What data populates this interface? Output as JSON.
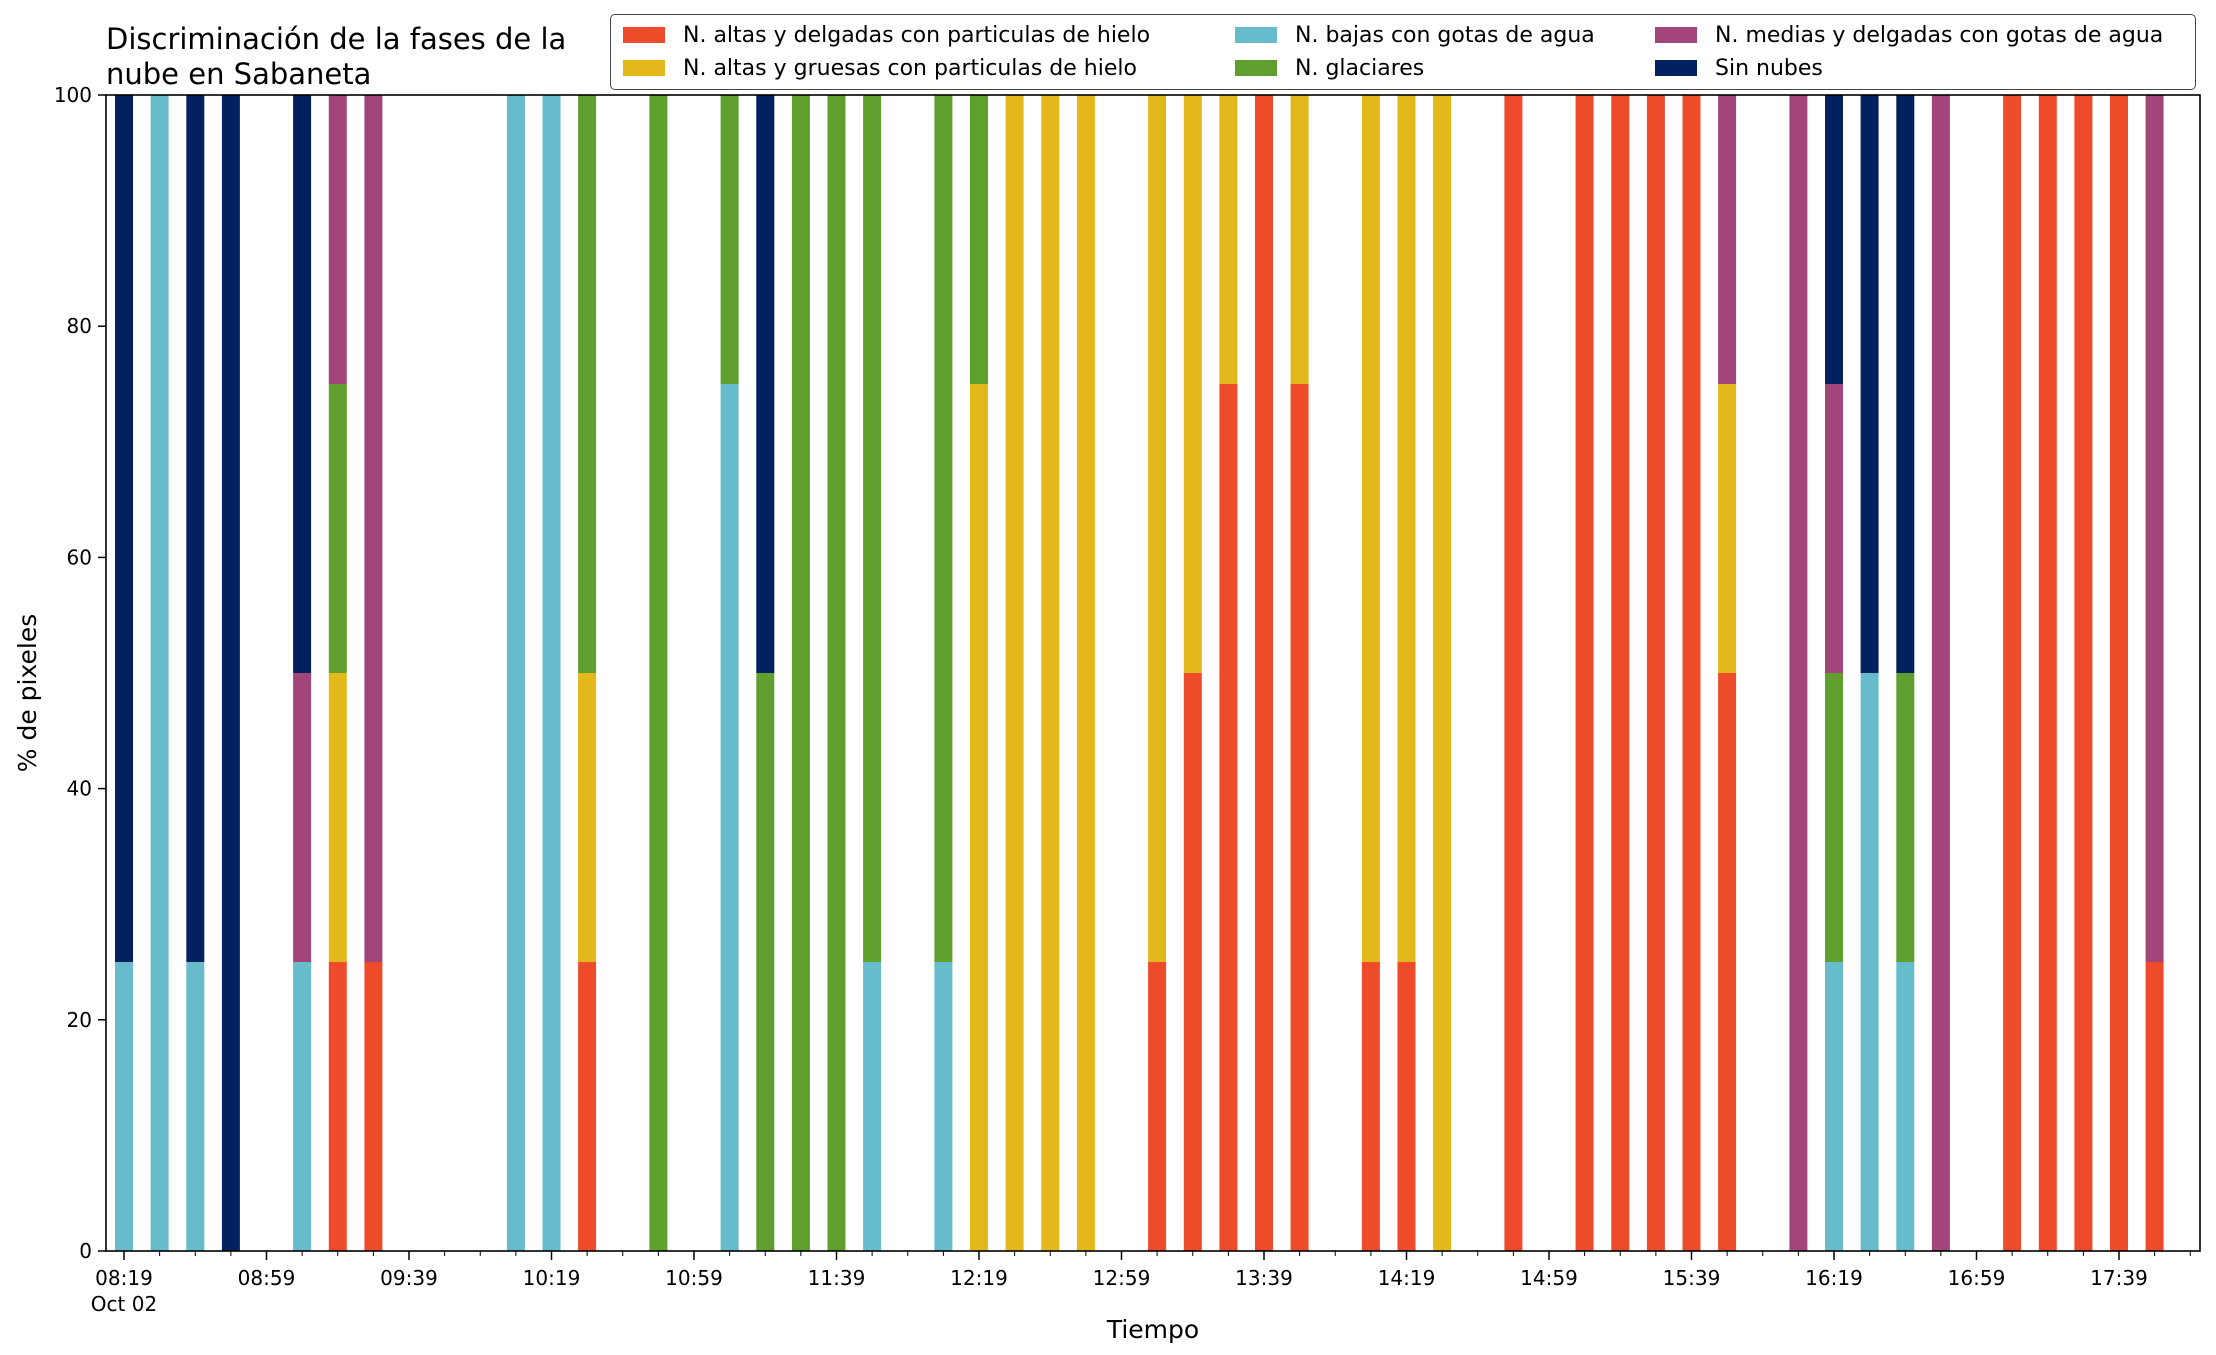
{
  "chart_data": {
    "type": "bar",
    "stacked": true,
    "title_lines": [
      "Discriminación de la fases de la",
      "nube en Sabaneta"
    ],
    "xlabel": "Tiempo",
    "ylabel": "% de pixeles",
    "ylim": [
      0,
      100
    ],
    "yticks": [
      0,
      20,
      40,
      60,
      80,
      100
    ],
    "x_time_range": [
      "08:19",
      "18:09"
    ],
    "bar_interval_minutes": 10,
    "xtick_labels": [
      "08:19",
      "08:59",
      "09:39",
      "10:19",
      "10:59",
      "11:39",
      "12:19",
      "12:59",
      "13:39",
      "14:19",
      "14:59",
      "15:39",
      "16:19",
      "16:59",
      "17:39"
    ],
    "xtick_date_label": "Oct 02",
    "minor_tick_every_minutes": 10,
    "grid": false,
    "legend_position": "top-right",
    "series": [
      {
        "name": "N. altas y delgadas con particulas de hielo",
        "color": "#EE4B2B"
      },
      {
        "name": "N. altas y gruesas con particulas de hielo",
        "color": "#E3B81A"
      },
      {
        "name": "N. bajas con gotas de agua",
        "color": "#66BCCA"
      },
      {
        "name": "N. glaciares",
        "color": "#5E9F2E"
      },
      {
        "name": "N. medias y delgadas con gotas de agua",
        "color": "#A2457A"
      },
      {
        "name": "Sin nubes",
        "color": "#03215E"
      }
    ],
    "bars": [
      {
        "time": "08:19",
        "values": [
          0,
          0,
          25,
          0,
          0,
          75
        ]
      },
      {
        "time": "08:29",
        "values": [
          0,
          0,
          100,
          0,
          0,
          0
        ]
      },
      {
        "time": "08:39",
        "values": [
          0,
          0,
          25,
          0,
          0,
          75
        ]
      },
      {
        "time": "08:49",
        "values": [
          0,
          0,
          0,
          0,
          0,
          100
        ]
      },
      {
        "time": "09:09",
        "values": [
          0,
          0,
          25,
          0,
          25,
          50
        ]
      },
      {
        "time": "09:19",
        "values": [
          25,
          25,
          0,
          25,
          25,
          0
        ]
      },
      {
        "time": "09:29",
        "values": [
          25,
          0,
          0,
          0,
          75,
          0
        ]
      },
      {
        "time": "10:09",
        "values": [
          0,
          0,
          100,
          0,
          0,
          0
        ]
      },
      {
        "time": "10:19",
        "values": [
          0,
          0,
          100,
          0,
          0,
          0
        ]
      },
      {
        "time": "10:29",
        "values": [
          25,
          25,
          0,
          50,
          0,
          0
        ]
      },
      {
        "time": "10:49",
        "values": [
          0,
          0,
          0,
          100,
          0,
          0
        ]
      },
      {
        "time": "11:09",
        "values": [
          0,
          0,
          75,
          25,
          0,
          0
        ]
      },
      {
        "time": "11:19",
        "values": [
          0,
          0,
          0,
          50,
          0,
          50
        ]
      },
      {
        "time": "11:29",
        "values": [
          0,
          0,
          0,
          100,
          0,
          0
        ]
      },
      {
        "time": "11:39",
        "values": [
          0,
          0,
          0,
          100,
          0,
          0
        ]
      },
      {
        "time": "11:49",
        "values": [
          0,
          0,
          25,
          75,
          0,
          0
        ]
      },
      {
        "time": "12:09",
        "values": [
          0,
          0,
          25,
          75,
          0,
          0
        ]
      },
      {
        "time": "12:19",
        "values": [
          0,
          75,
          0,
          25,
          0,
          0
        ]
      },
      {
        "time": "12:29",
        "values": [
          0,
          100,
          0,
          0,
          0,
          0
        ]
      },
      {
        "time": "12:39",
        "values": [
          0,
          100,
          0,
          0,
          0,
          0
        ]
      },
      {
        "time": "12:49",
        "values": [
          0,
          100,
          0,
          0,
          0,
          0
        ]
      },
      {
        "time": "13:09",
        "values": [
          25,
          75,
          0,
          0,
          0,
          0
        ]
      },
      {
        "time": "13:19",
        "values": [
          50,
          50,
          0,
          0,
          0,
          0
        ]
      },
      {
        "time": "13:29",
        "values": [
          75,
          25,
          0,
          0,
          0,
          0
        ]
      },
      {
        "time": "13:39",
        "values": [
          100,
          0,
          0,
          0,
          0,
          0
        ]
      },
      {
        "time": "13:49",
        "values": [
          75,
          25,
          0,
          0,
          0,
          0
        ]
      },
      {
        "time": "14:09",
        "values": [
          25,
          75,
          0,
          0,
          0,
          0
        ]
      },
      {
        "time": "14:19",
        "values": [
          25,
          75,
          0,
          0,
          0,
          0
        ]
      },
      {
        "time": "14:29",
        "values": [
          0,
          100,
          0,
          0,
          0,
          0
        ]
      },
      {
        "time": "14:49",
        "values": [
          100,
          0,
          0,
          0,
          0,
          0
        ]
      },
      {
        "time": "15:09",
        "values": [
          100,
          0,
          0,
          0,
          0,
          0
        ]
      },
      {
        "time": "15:19",
        "values": [
          100,
          0,
          0,
          0,
          0,
          0
        ]
      },
      {
        "time": "15:29",
        "values": [
          100,
          0,
          0,
          0,
          0,
          0
        ]
      },
      {
        "time": "15:39",
        "values": [
          100,
          0,
          0,
          0,
          0,
          0
        ]
      },
      {
        "time": "15:49",
        "values": [
          50,
          25,
          0,
          0,
          25,
          0
        ]
      },
      {
        "time": "16:09",
        "values": [
          0,
          0,
          0,
          0,
          100,
          0
        ]
      },
      {
        "time": "16:19",
        "values": [
          0,
          0,
          25,
          25,
          25,
          25
        ]
      },
      {
        "time": "16:29",
        "values": [
          0,
          0,
          50,
          0,
          0,
          50
        ]
      },
      {
        "time": "16:39",
        "values": [
          0,
          0,
          25,
          25,
          0,
          50
        ]
      },
      {
        "time": "16:49",
        "values": [
          0,
          0,
          0,
          0,
          100,
          0
        ]
      },
      {
        "time": "17:09",
        "values": [
          100,
          0,
          0,
          0,
          0,
          0
        ]
      },
      {
        "time": "17:19",
        "values": [
          100,
          0,
          0,
          0,
          0,
          0
        ]
      },
      {
        "time": "17:29",
        "values": [
          100,
          0,
          0,
          0,
          0,
          0
        ]
      },
      {
        "time": "17:39",
        "values": [
          100,
          0,
          0,
          0,
          0,
          0
        ]
      },
      {
        "time": "17:49",
        "values": [
          25,
          0,
          0,
          0,
          75,
          0
        ]
      }
    ]
  }
}
